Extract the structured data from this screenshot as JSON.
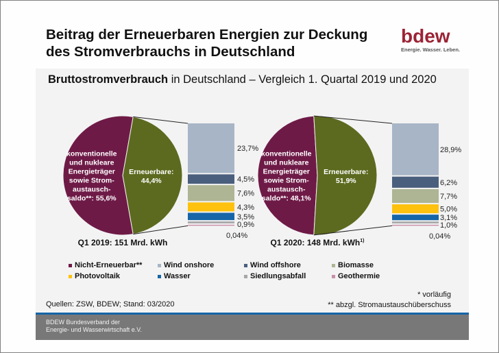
{
  "header": {
    "title_line1": "Beitrag der Erneuerbaren Energien zur Deckung",
    "title_line2": "des Stromverbrauchs in Deutschland",
    "logo_word": "bdew",
    "logo_tagline": "Energie. Wasser. Leben.",
    "brand_color": "#9b2335"
  },
  "subtitle": {
    "bold": "Bruttostromverbrauch",
    "rest": " in Deutschland – Vergleich 1. Quartal 2019 und 2020"
  },
  "chart_data": [
    {
      "type": "pie",
      "title": "Q1 2019: 151 Mrd. kWh",
      "title_sup": "",
      "slices": [
        {
          "name": "Nicht-Erneuerbar",
          "label": "konventionelle\nund nukleare\nEnergieträger\nsowie Strom-\naustausch-\nsaldo**: 55,6%",
          "value": 55.6,
          "color": "#6e1a47"
        },
        {
          "name": "Erneuerbare",
          "label": "Erneuerbare:\n44,4%",
          "value": 44.4,
          "color": "#5c6a1f"
        }
      ],
      "breakdown": {
        "type": "stacked-bar",
        "segments": [
          {
            "name": "Wind onshore",
            "value": 23.7,
            "label": "23,7%",
            "color": "#a7b5c6"
          },
          {
            "name": "Wind offshore",
            "value": 4.5,
            "label": "4,5%",
            "color": "#4a5f7d"
          },
          {
            "name": "Biomasse",
            "value": 7.6,
            "label": "7,6%",
            "color": "#adb594"
          },
          {
            "name": "Photovoltaik",
            "value": 4.3,
            "label": "4,3%",
            "color": "#fec20e"
          },
          {
            "name": "Wasser",
            "value": 3.5,
            "label": "3,5%",
            "color": "#1565a8"
          },
          {
            "name": "Siedlungsabfall",
            "value": 0.9,
            "label": "0,9%",
            "color": "#a6a6a6"
          },
          {
            "name": "Geothermie",
            "value": 0.04,
            "label": "0,04%",
            "color": "#c98fa8"
          }
        ]
      }
    },
    {
      "type": "pie",
      "title": "Q1 2020: 148 Mrd. kWh",
      "title_sup": "1)",
      "slices": [
        {
          "name": "Nicht-Erneuerbar",
          "label": "konventionelle\nund nukleare\nEnergieträger\nsowie Strom-\naustausch-\nsaldo**: 48,1%",
          "value": 48.1,
          "color": "#6e1a47"
        },
        {
          "name": "Erneuerbare",
          "label": "Erneuerbare:\n51,9%",
          "value": 51.9,
          "color": "#5c6a1f"
        }
      ],
      "breakdown": {
        "type": "stacked-bar",
        "segments": [
          {
            "name": "Wind onshore",
            "value": 28.9,
            "label": "28,9%",
            "color": "#a7b5c6"
          },
          {
            "name": "Wind offshore",
            "value": 6.2,
            "label": "6,2%",
            "color": "#4a5f7d"
          },
          {
            "name": "Biomasse",
            "value": 7.7,
            "label": "7,7%",
            "color": "#adb594"
          },
          {
            "name": "Photovoltaik",
            "value": 5.0,
            "label": "5,0%",
            "color": "#fec20e"
          },
          {
            "name": "Wasser",
            "value": 3.1,
            "label": "3,1%",
            "color": "#1565a8"
          },
          {
            "name": "Siedlungsabfall",
            "value": 1.0,
            "label": "1,0%",
            "color": "#a6a6a6"
          },
          {
            "name": "Geothermie",
            "value": 0.04,
            "label": "0,04%",
            "color": "#c98fa8"
          }
        ]
      }
    }
  ],
  "legend": [
    {
      "label": "Nicht-Erneuerbar**",
      "color": "#6e1a47"
    },
    {
      "label": "Wind onshore",
      "color": "#a7b5c6"
    },
    {
      "label": "Wind offshore",
      "color": "#4a5f7d"
    },
    {
      "label": "Biomasse",
      "color": "#adb594"
    },
    {
      "label": "Photovoltaik",
      "color": "#fec20e"
    },
    {
      "label": "Wasser",
      "color": "#1565a8"
    },
    {
      "label": "Siedlungsabfall",
      "color": "#a6a6a6"
    },
    {
      "label": "Geothermie",
      "color": "#c98fa8"
    }
  ],
  "footnotes": {
    "source": "Quellen: ZSW, BDEW; Stand: 03/2020",
    "note1": "* vorläufig",
    "note2": "** abzgl. Stromaustauschüberschuss"
  },
  "footer": {
    "line1": "BDEW Bundesverband der",
    "line2": "Energie- und Wasserwirtschaft e.V."
  }
}
